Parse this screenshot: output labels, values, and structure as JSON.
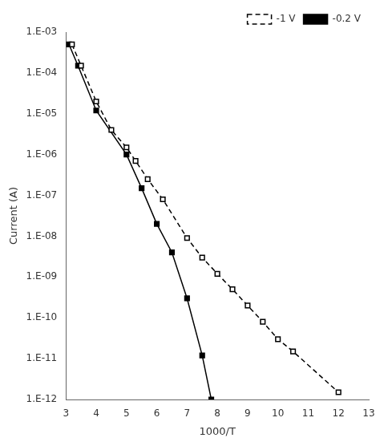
{
  "chart_data": {
    "type": "line",
    "xlabel": "1000/T",
    "ylabel": "Current (A)",
    "log": "y",
    "grid": false,
    "legend": "upper right",
    "xlim": [
      3,
      13
    ],
    "ylim": [
      1e-12,
      0.001
    ],
    "xticks": [
      3,
      4,
      5,
      6,
      7,
      8,
      9,
      10,
      11,
      12,
      13
    ],
    "yticks": [
      {
        "value": 1e-12,
        "label": "1.E-12"
      },
      {
        "value": 1e-11,
        "label": "1.E-11"
      },
      {
        "value": 1e-10,
        "label": "1.E-10"
      },
      {
        "value": 1e-09,
        "label": "1.E-09"
      },
      {
        "value": 1e-08,
        "label": "1.E-08"
      },
      {
        "value": 1e-07,
        "label": "1.E-07"
      },
      {
        "value": 1e-06,
        "label": "1.E-06"
      },
      {
        "value": 1e-05,
        "label": "1.E-05"
      },
      {
        "value": 0.0001,
        "label": "1.E-04"
      },
      {
        "value": 0.001,
        "label": "1.E-03"
      }
    ],
    "series": [
      {
        "name": "-1 V",
        "color": "black",
        "marker": "square_open",
        "line_style": "dashed",
        "x": [
          3.2,
          3.5,
          4.0,
          4.5,
          5.0,
          5.3,
          5.7,
          6.2,
          7.0,
          7.5,
          8.0,
          8.5,
          9.0,
          9.5,
          10.0,
          10.5,
          12.0
        ],
        "values": [
          0.0005,
          0.00015,
          2e-05,
          4e-06,
          1.5e-06,
          7e-07,
          2.5e-07,
          8e-08,
          9e-09,
          3e-09,
          1.2e-09,
          5e-10,
          2e-10,
          8e-11,
          3e-11,
          1.5e-11,
          1.5e-12
        ]
      },
      {
        "name": "-0.2 V",
        "color": "black",
        "marker": "square",
        "line_style": "solid",
        "x": [
          3.1,
          3.4,
          4.0,
          5.0,
          5.5,
          6.0,
          6.5,
          7.0,
          7.5,
          7.8
        ],
        "values": [
          0.0005,
          0.00015,
          1.2e-05,
          1e-06,
          1.5e-07,
          2e-08,
          4e-09,
          3e-10,
          1.2e-11,
          1e-12
        ]
      }
    ]
  }
}
